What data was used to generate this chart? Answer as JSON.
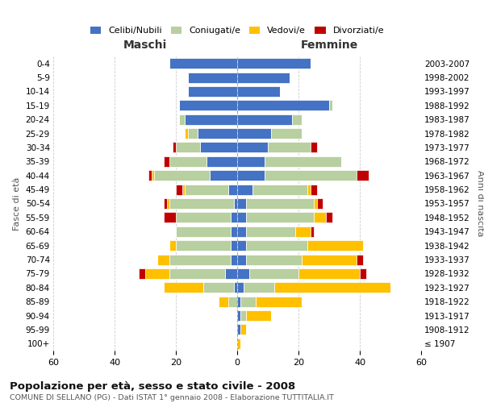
{
  "age_groups": [
    "0-4",
    "5-9",
    "10-14",
    "15-19",
    "20-24",
    "25-29",
    "30-34",
    "35-39",
    "40-44",
    "45-49",
    "50-54",
    "55-59",
    "60-64",
    "65-69",
    "70-74",
    "75-79",
    "80-84",
    "85-89",
    "90-94",
    "95-99",
    "100+"
  ],
  "birth_years": [
    "2003-2007",
    "1998-2002",
    "1993-1997",
    "1988-1992",
    "1983-1987",
    "1978-1982",
    "1973-1977",
    "1968-1972",
    "1963-1967",
    "1958-1962",
    "1953-1957",
    "1948-1952",
    "1943-1947",
    "1938-1942",
    "1933-1937",
    "1928-1932",
    "1923-1927",
    "1918-1922",
    "1913-1917",
    "1908-1912",
    "≤ 1907"
  ],
  "colors": {
    "celibi": "#4472c4",
    "coniugati": "#b8cfa0",
    "vedovi": "#ffc000",
    "divorziati": "#c00000"
  },
  "maschi": {
    "celibi": [
      22,
      16,
      16,
      19,
      17,
      13,
      12,
      10,
      9,
      3,
      1,
      2,
      2,
      2,
      2,
      4,
      1,
      0,
      0,
      0,
      0
    ],
    "coniugati": [
      0,
      0,
      0,
      0,
      2,
      3,
      8,
      12,
      18,
      14,
      21,
      18,
      18,
      18,
      20,
      18,
      10,
      3,
      0,
      0,
      0
    ],
    "vedovi": [
      0,
      0,
      0,
      0,
      0,
      1,
      0,
      0,
      1,
      1,
      1,
      0,
      0,
      2,
      4,
      8,
      13,
      3,
      0,
      0,
      0
    ],
    "divorziati": [
      0,
      0,
      0,
      0,
      0,
      0,
      1,
      2,
      1,
      2,
      1,
      4,
      0,
      0,
      0,
      2,
      0,
      0,
      0,
      0,
      0
    ]
  },
  "femmine": {
    "celibi": [
      24,
      17,
      14,
      30,
      18,
      11,
      10,
      9,
      9,
      5,
      3,
      3,
      3,
      3,
      3,
      4,
      2,
      1,
      1,
      1,
      0
    ],
    "coniugati": [
      0,
      0,
      0,
      1,
      3,
      10,
      14,
      25,
      30,
      18,
      22,
      22,
      16,
      20,
      18,
      16,
      10,
      5,
      2,
      0,
      0
    ],
    "vedovi": [
      0,
      0,
      0,
      0,
      0,
      0,
      0,
      0,
      0,
      1,
      1,
      4,
      5,
      18,
      18,
      20,
      38,
      15,
      8,
      2,
      1
    ],
    "divorziati": [
      0,
      0,
      0,
      0,
      0,
      0,
      2,
      0,
      4,
      2,
      2,
      2,
      1,
      0,
      2,
      2,
      0,
      0,
      0,
      0,
      0
    ]
  },
  "xlim": 60,
  "title": "Popolazione per età, sesso e stato civile - 2008",
  "subtitle": "COMUNE DI SELLANO (PG) - Dati ISTAT 1° gennaio 2008 - Elaborazione TUTTITALIA.IT",
  "ylabel_left": "Fasce di età",
  "ylabel_right": "Anni di nascita",
  "xlabel_left": "Maschi",
  "xlabel_right": "Femmine",
  "legend_labels": [
    "Celibi/Nubili",
    "Coniugati/e",
    "Vedovi/e",
    "Divorziati/e"
  ],
  "bg_color": "#ffffff",
  "grid_color": "#cccccc"
}
